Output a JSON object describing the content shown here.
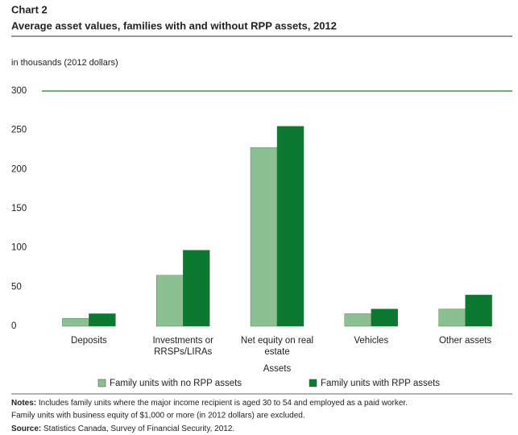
{
  "chart_data": {
    "type": "bar",
    "title": "Chart 2",
    "subtitle": "Average asset values, families with and without RPP assets, 2012",
    "y_label": "in thousands (2012 dollars)",
    "x_label": "Assets",
    "categories": [
      "Deposits",
      "Investments or\nRRSPs/LIRAs",
      "Net equity on real\nestate",
      "Vehicles",
      "Other assets"
    ],
    "series": [
      {
        "name": "Family units with no RPP assets",
        "color": "#8cbf92",
        "values": [
          10,
          65,
          228,
          16,
          22
        ]
      },
      {
        "name": "Family units with RPP assets",
        "color": "#0b7a30",
        "values": [
          16,
          97,
          255,
          22,
          40
        ]
      }
    ],
    "ylim": [
      0,
      300
    ],
    "yticks": [
      0,
      50,
      100,
      150,
      200,
      250,
      300
    ],
    "grid": false,
    "legend": "bottom",
    "notes": {
      "label": "Notes:",
      "lines": [
        "Includes family units where the major income recipient is aged 30 to 54 and employed as a paid worker.",
        "Family units with business equity of $1,000 or more (in 2012 dollars) are excluded."
      ]
    },
    "source": {
      "label": "Source:",
      "text": "Statistics Canada, Survey of Financial Security, 2012."
    }
  }
}
